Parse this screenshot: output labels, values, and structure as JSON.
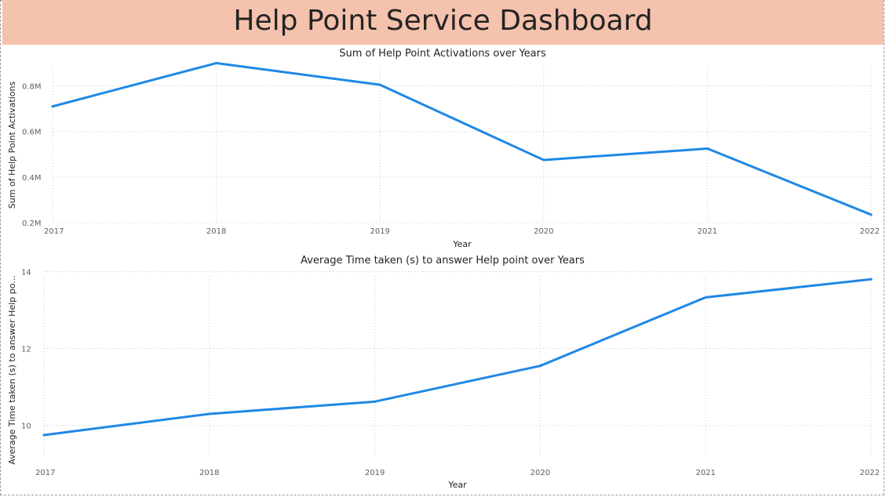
{
  "dashboard": {
    "title": "Help Point Service Dashboard"
  },
  "colors": {
    "header_bg": "#f4c2ad",
    "line": "#1f88e5",
    "gridline": "#c8c8c8"
  },
  "chart_data": [
    {
      "type": "line",
      "title": "Sum of Help Point Activations over Years",
      "xlabel": "Year",
      "ylabel": "Sum of Help Point Activations",
      "x": [
        "2017",
        "2018",
        "2019",
        "2020",
        "2021",
        "2022"
      ],
      "series": [
        {
          "values": [
            710000,
            900000,
            805000,
            475000,
            525000,
            235000
          ]
        }
      ],
      "ylim": [
        200000,
        950000
      ],
      "yticks": [
        200000,
        400000,
        600000,
        800000
      ],
      "ytick_labels": [
        "0.2M",
        "0.4M",
        "0.6M",
        "0.8M"
      ],
      "grid": true
    },
    {
      "type": "line",
      "title": "Average Time taken (s) to answer Help point over Years",
      "xlabel": "Year",
      "ylabel": "Average Time taken (s) to answer Help po...",
      "x": [
        "2017",
        "2018",
        "2019",
        "2020",
        "2021",
        "2022"
      ],
      "series": [
        {
          "values": [
            9.75,
            10.3,
            10.62,
            11.55,
            13.33,
            13.8
          ]
        }
      ],
      "ylim": [
        9.2,
        14.05
      ],
      "yticks": [
        10,
        12,
        14
      ],
      "ytick_labels": [
        "10",
        "12",
        "14"
      ],
      "grid": true
    }
  ]
}
